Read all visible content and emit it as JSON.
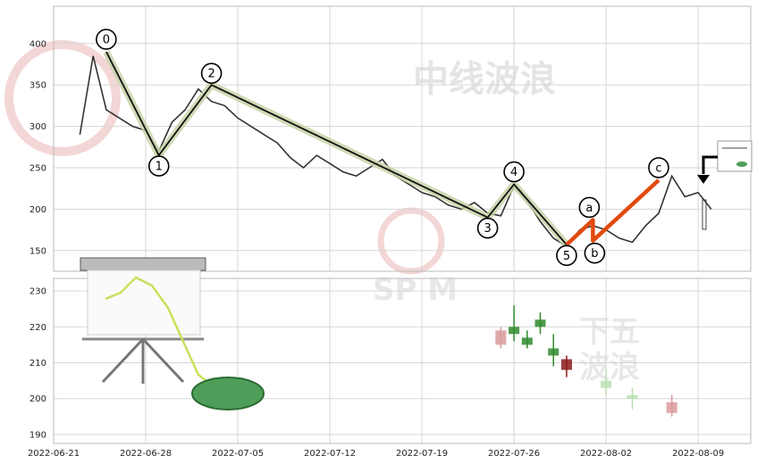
{
  "watermark": {
    "top_text": "中线波浪",
    "bottom_text_1": "下五",
    "bottom_text_2": "波浪",
    "logo_text": "SP M"
  },
  "chart_data": {
    "type": "line",
    "x_axis": {
      "type": "date",
      "range": [
        "2022-06-21",
        "2022-08-13"
      ],
      "tick_labels": [
        "2022-06-21",
        "2022-06-28",
        "2022-07-05",
        "2022-07-12",
        "2022-07-19",
        "2022-07-26",
        "2022-08-02",
        "2022-08-09"
      ],
      "grid": true
    },
    "upper_panel": {
      "ylim": [
        125,
        445
      ],
      "ytick_labels": [
        "400",
        "350",
        "300",
        "250",
        "200",
        "150"
      ],
      "grid": true,
      "price_series": {
        "x": [
          "2022-06-23",
          "2022-06-24",
          "2022-06-25",
          "2022-06-26",
          "2022-06-27",
          "2022-06-28",
          "2022-06-29",
          "2022-06-30",
          "2022-07-01",
          "2022-07-02",
          "2022-07-03",
          "2022-07-04",
          "2022-07-05",
          "2022-07-06",
          "2022-07-07",
          "2022-07-08",
          "2022-07-09",
          "2022-07-10",
          "2022-07-11",
          "2022-07-12",
          "2022-07-13",
          "2022-07-14",
          "2022-07-15",
          "2022-07-16",
          "2022-07-17",
          "2022-07-18",
          "2022-07-19",
          "2022-07-20",
          "2022-07-21",
          "2022-07-22",
          "2022-07-23",
          "2022-07-24",
          "2022-07-25",
          "2022-07-26",
          "2022-07-27",
          "2022-07-28",
          "2022-07-29",
          "2022-07-30",
          "2022-07-31",
          "2022-08-01",
          "2022-08-02",
          "2022-08-03",
          "2022-08-04",
          "2022-08-05",
          "2022-08-06",
          "2022-08-07",
          "2022-08-08",
          "2022-08-09",
          "2022-08-10"
        ],
        "y": [
          290,
          385,
          320,
          310,
          300,
          295,
          270,
          305,
          320,
          345,
          330,
          325,
          310,
          300,
          290,
          280,
          262,
          250,
          265,
          255,
          245,
          240,
          250,
          260,
          240,
          230,
          220,
          215,
          205,
          200,
          208,
          195,
          192,
          228,
          210,
          185,
          165,
          155,
          175,
          180,
          175,
          165,
          160,
          180,
          195,
          240,
          215,
          220,
          200
        ]
      },
      "wave_path": {
        "labels": [
          "0",
          "1",
          "2",
          "3",
          "4",
          "5"
        ],
        "x": [
          "2022-06-25",
          "2022-06-29",
          "2022-07-03",
          "2022-07-24",
          "2022-07-26",
          "2022-07-30"
        ],
        "y": [
          390,
          265,
          350,
          190,
          230,
          157
        ]
      },
      "correction_path": {
        "labels": [
          "a",
          "b",
          "c"
        ],
        "x": [
          "2022-07-30",
          "2022-08-01",
          "2022-08-01",
          "2022-08-06"
        ],
        "y": [
          157,
          187,
          162,
          235
        ]
      }
    },
    "lower_panel": {
      "ylim": [
        187.5,
        233.5
      ],
      "ytick_labels": [
        "230",
        "220",
        "210",
        "200",
        "190"
      ],
      "grid": true,
      "candles": [
        {
          "x": "2022-07-25",
          "open": 219,
          "close": 215,
          "high": 220,
          "low": 214,
          "color": "#d99a9e"
        },
        {
          "x": "2022-07-26",
          "open": 220,
          "close": 218,
          "high": 226,
          "low": 216,
          "color": "#2e8b2e"
        },
        {
          "x": "2022-07-27",
          "open": 215,
          "close": 217,
          "high": 219,
          "low": 214,
          "color": "#2e8b2e"
        },
        {
          "x": "2022-07-28",
          "open": 220,
          "close": 222,
          "high": 224,
          "low": 218,
          "color": "#2e8b2e"
        },
        {
          "x": "2022-07-29",
          "open": 212,
          "close": 214,
          "high": 218,
          "low": 209,
          "color": "#2e8b2e"
        },
        {
          "x": "2022-07-30",
          "open": 211,
          "close": 208,
          "high": 212,
          "low": 206,
          "color": "#8b1a1a"
        },
        {
          "x": "2022-08-02",
          "open": 205,
          "close": 203,
          "high": 208,
          "low": 201,
          "color": "#b9e0b0"
        },
        {
          "x": "2022-08-04",
          "open": 200,
          "close": 201,
          "high": 203,
          "low": 197,
          "color": "#b9e0b0"
        },
        {
          "x": "2022-08-07",
          "open": 199,
          "close": 196,
          "high": 201,
          "low": 195,
          "color": "#d99a9e"
        }
      ]
    }
  }
}
